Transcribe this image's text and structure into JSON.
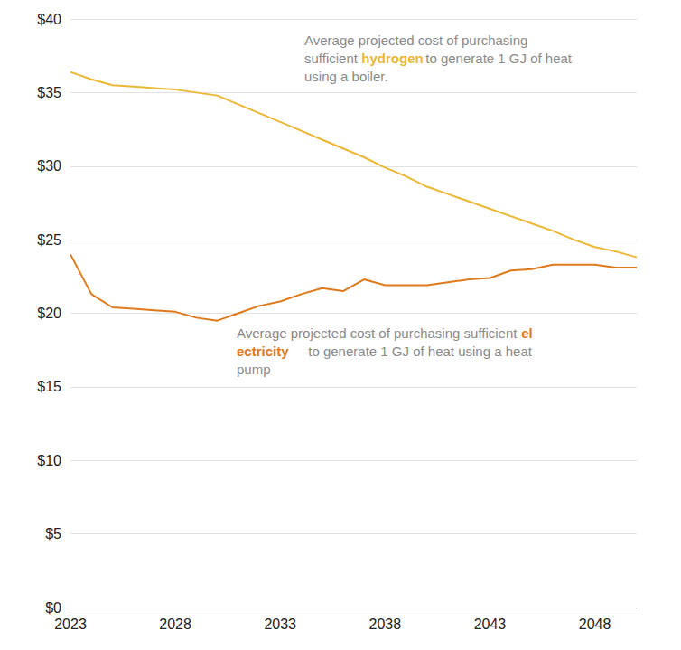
{
  "chart_data": {
    "type": "line",
    "categories": [
      "2023",
      null,
      null,
      null,
      null,
      "2028",
      null,
      null,
      null,
      null,
      "2033",
      null,
      null,
      null,
      null,
      "2038",
      null,
      null,
      null,
      null,
      "2043",
      null,
      null,
      null,
      null,
      "2048",
      null,
      null
    ],
    "series": [
      {
        "name": "hydrogen",
        "color": "#EBB734",
        "annotation": "Average projected cost of purchasing sufficient hydrogen to generate 1 GJ of heat using a boiler.",
        "values": [
          36.4,
          35.9,
          35.5,
          35.4,
          35.3,
          35.2,
          35.0,
          34.8,
          34.2,
          33.6,
          33.0,
          32.4,
          31.8,
          31.2,
          30.6,
          29.9,
          29.3,
          28.6,
          28.1,
          27.6,
          27.1,
          26.6,
          26.1,
          25.6,
          25.0,
          24.5,
          24.2,
          23.8
        ]
      },
      {
        "name": "electricity",
        "color": "#DF7A1C",
        "annotation": "Average projected cost of purchasing sufficient electricity to generate 1 GJ of heat using a heat pump",
        "values": [
          24.0,
          21.3,
          20.4,
          20.3,
          20.2,
          20.1,
          19.7,
          19.5,
          20.0,
          20.5,
          20.8,
          21.3,
          21.7,
          21.5,
          22.3,
          21.9,
          21.9,
          21.9,
          22.1,
          22.3,
          22.4,
          22.9,
          23.0,
          23.3,
          23.3,
          23.3,
          23.1,
          23.1
        ]
      }
    ],
    "ylim": [
      0,
      40
    ],
    "yticks": [
      {
        "value": 0,
        "label": "$0"
      },
      {
        "value": 5,
        "label": "$5"
      },
      {
        "value": 10,
        "label": "$10"
      },
      {
        "value": 15,
        "label": "$15"
      },
      {
        "value": 20,
        "label": "$20"
      },
      {
        "value": 25,
        "label": "$25"
      },
      {
        "value": 30,
        "label": "$30"
      },
      {
        "value": 35,
        "label": "$35"
      },
      {
        "value": 40,
        "label": "$40"
      }
    ],
    "grid": true
  }
}
